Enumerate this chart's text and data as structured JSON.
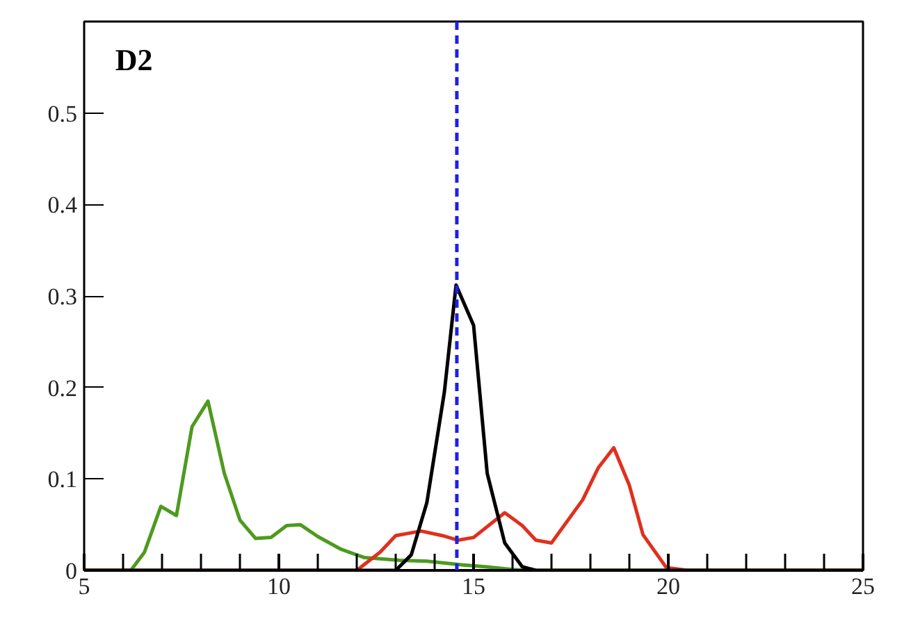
{
  "chart_data": {
    "type": "line",
    "title": "D2",
    "xlim": [
      5,
      25
    ],
    "ylim": [
      0,
      0.6
    ],
    "xticks": [
      5,
      10,
      15,
      20,
      25
    ],
    "yticks": [
      0,
      0.1,
      0.2,
      0.3,
      0.4,
      0.5
    ],
    "grid": false,
    "series": [
      {
        "color": "#4e9a1e",
        "x": [
          5,
          6.2,
          6.55,
          6.97,
          7.37,
          7.77,
          8.18,
          8.6,
          9.0,
          9.4,
          9.8,
          10.2,
          10.55,
          11.0,
          11.6,
          12.2,
          13.1,
          13.8,
          14.7,
          15.3,
          16.0,
          16.5,
          25
        ],
        "values": [
          0,
          0,
          0.02,
          0.07,
          0.06,
          0.157,
          0.185,
          0.106,
          0.055,
          0.035,
          0.036,
          0.049,
          0.05,
          0.037,
          0.023,
          0.014,
          0.011,
          0.01,
          0.006,
          0.004,
          0.001,
          0,
          0
        ]
      },
      {
        "color": "#e0301e",
        "x": [
          5,
          12.0,
          12.6,
          13.0,
          13.65,
          14.2,
          14.6,
          15.0,
          15.8,
          16.25,
          16.6,
          17.0,
          17.8,
          18.2,
          18.6,
          19.0,
          19.35,
          19.95,
          20.5,
          25
        ],
        "values": [
          0,
          0,
          0.02,
          0.038,
          0.043,
          0.038,
          0.033,
          0.036,
          0.063,
          0.049,
          0.033,
          0.03,
          0.077,
          0.112,
          0.134,
          0.093,
          0.039,
          0.003,
          0,
          0
        ]
      },
      {
        "color": "#000000",
        "x": [
          5,
          13.0,
          13.4,
          13.8,
          14.25,
          14.55,
          15.0,
          15.35,
          15.8,
          16.25,
          16.6,
          25
        ],
        "values": [
          0,
          0,
          0.017,
          0.074,
          0.195,
          0.312,
          0.268,
          0.106,
          0.03,
          0.004,
          0,
          0
        ]
      }
    ],
    "ref_lines": [
      {
        "axis": "x",
        "value": 14.57,
        "color": "#1f1fe6",
        "line_style": "dashed"
      }
    ]
  }
}
